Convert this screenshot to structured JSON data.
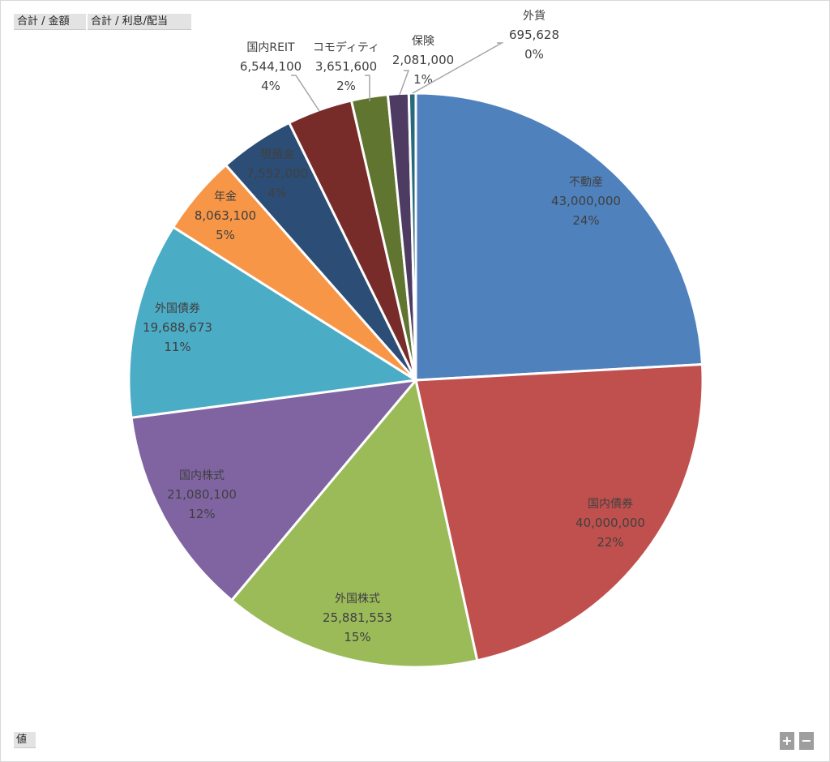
{
  "field_buttons": {
    "sum_amount": "合計 / 金額",
    "sum_interest": "合計 / 利息/配当",
    "values": "値"
  },
  "zoom": {
    "plus": "+",
    "minus": "−"
  },
  "chart_data": {
    "type": "pie",
    "title": "",
    "slices": [
      {
        "label": "不動産",
        "value": 43000000,
        "value_label": "43,000,000",
        "pct_label": "24%",
        "color": "#4f81bd"
      },
      {
        "label": "国内債券",
        "value": 40000000,
        "value_label": "40,000,000",
        "pct_label": "22%",
        "color": "#c0504d"
      },
      {
        "label": "外国株式",
        "value": 25881553,
        "value_label": "25,881,553",
        "pct_label": "15%",
        "color": "#9bbb59"
      },
      {
        "label": "国内株式",
        "value": 21080100,
        "value_label": "21,080,100",
        "pct_label": "12%",
        "color": "#8064a2"
      },
      {
        "label": "外国債券",
        "value": 19688673,
        "value_label": "19,688,673",
        "pct_label": "11%",
        "color": "#4bacc6"
      },
      {
        "label": "年金",
        "value": 8063100,
        "value_label": "8,063,100",
        "pct_label": "5%",
        "color": "#f79646"
      },
      {
        "label": "現預金",
        "value": 7552000,
        "value_label": "7,552,000",
        "pct_label": "4%",
        "color": "#2c4d75"
      },
      {
        "label": "国内REIT",
        "value": 6544100,
        "value_label": "6,544,100",
        "pct_label": "4%",
        "color": "#772c2a"
      },
      {
        "label": "コモディティ",
        "value": 3651600,
        "value_label": "3,651,600",
        "pct_label": "2%",
        "color": "#5f7530"
      },
      {
        "label": "保険",
        "value": 2081000,
        "value_label": "2,081,000",
        "pct_label": "1%",
        "color": "#4d3b62"
      },
      {
        "label": "外貨",
        "value": 695628,
        "value_label": "695,628",
        "pct_label": "0%",
        "color": "#276a7c"
      }
    ]
  }
}
